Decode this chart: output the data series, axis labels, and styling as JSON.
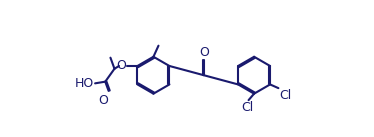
{
  "bg_color": "#ffffff",
  "line_color": "#1a1a6e",
  "line_width": 1.5,
  "font_size": 9,
  "atoms": {
    "O_label": "O",
    "HO_label": "HO",
    "O_carbonyl1": "O",
    "O_carbonyl2": "O",
    "Cl1_label": "Cl",
    "Cl2_label": "Cl"
  }
}
